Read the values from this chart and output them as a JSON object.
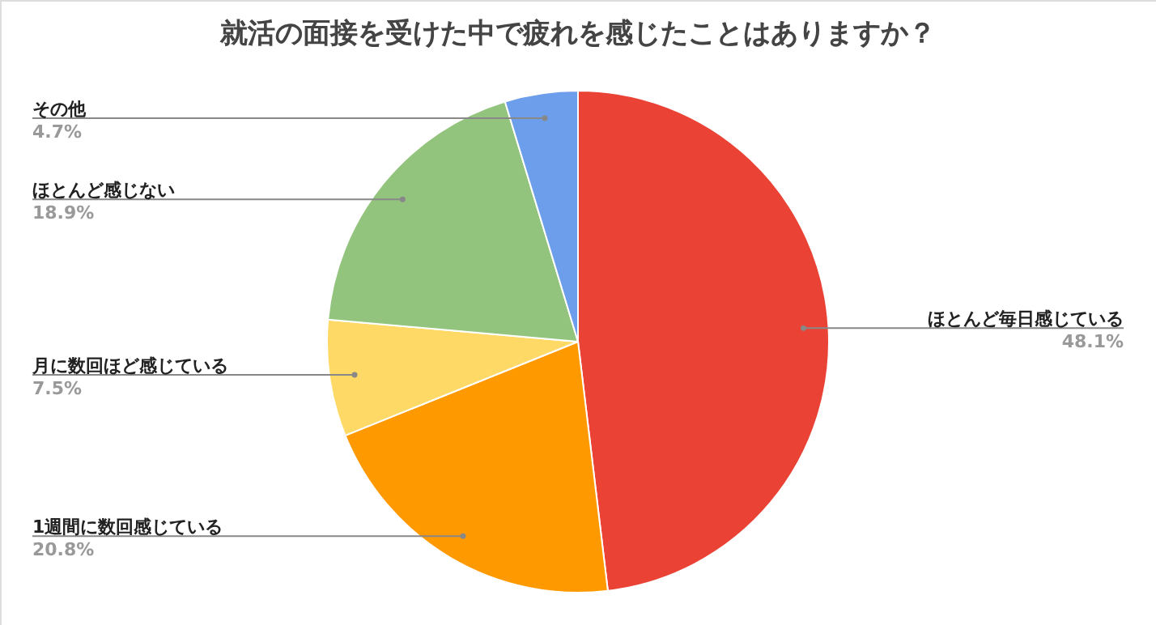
{
  "chart_data": {
    "type": "pie",
    "title": "就活の面接を受けた中で疲れを感じたことはありますか？",
    "categories": [
      "ほとんど毎日感じている",
      "1週間に数回感じている",
      "月に数回ほど感じている",
      "ほとんど感じない",
      "その他"
    ],
    "values": [
      48.1,
      20.8,
      7.5,
      18.9,
      4.7
    ],
    "colors": [
      "#ea4335",
      "#ff9900",
      "#ffd966",
      "#93c47d",
      "#6d9eeb"
    ],
    "value_labels": [
      "48.1%",
      "20.8%",
      "7.5%",
      "18.9%",
      "4.7%"
    ],
    "legend": false
  }
}
